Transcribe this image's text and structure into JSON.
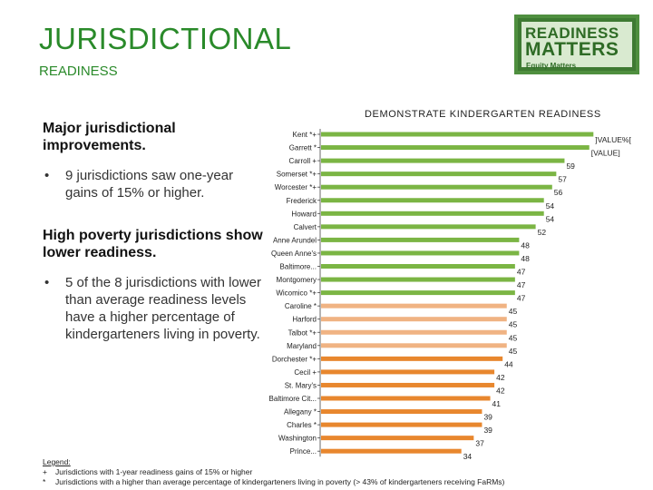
{
  "page": {
    "title": "JURISDICTIONAL",
    "subtitle": "READINESS"
  },
  "logo": {
    "line1": "READINESS",
    "line2": "MATTERS",
    "line3": "Equity Matters"
  },
  "left_panel": {
    "heading1": "Major jurisdictional improvements.",
    "bullet1": "9 jurisdictions saw one-year gains of 15% or higher.",
    "heading2": "High poverty jurisdictions show lower readiness.",
    "bullet2": "5 of the 8 jurisdictions with lower than average readiness levels have a higher percentage of kindergarteners living in poverty.",
    "bullet_symbol": "•"
  },
  "legend": {
    "heading": "Legend:",
    "items": [
      {
        "symbol": "+",
        "text": "Jurisdictions with 1-year readiness gains of 15% or higher"
      },
      {
        "symbol": "*",
        "text": "Jurisdictions with a higher than average percentage of kindergarteners living in poverty (> 43% of kindergarteners receiving FaRMs)"
      }
    ]
  },
  "colors": {
    "green": "#7bb544",
    "peach": "#f0b383",
    "orange": "#e8872e",
    "title_green": "#2a8a2a"
  },
  "chart_data": {
    "type": "bar",
    "orientation": "horizontal",
    "title": "DEMONSTRATE KINDERGARTEN READINESS",
    "xlim": [
      0,
      70
    ],
    "categories": [
      "Kent *+",
      "Garrett *",
      "Carroll +",
      "Somerset *+",
      "Worcester *+",
      "Frederick",
      "Howard",
      "Calvert",
      "Anne Arundel",
      "Queen Anne's",
      "Baltimore...",
      "Montgomery",
      "Wicomico *+",
      "Caroline *",
      "Harford",
      "Talbot *+",
      "Maryland",
      "Dorchester *+",
      "Cecil +",
      "St. Mary's",
      "Baltimore Cit...",
      "Allegany *",
      "Charles *",
      "Washington",
      "Prince..."
    ],
    "values": [
      66,
      65,
      59,
      57,
      56,
      54,
      54,
      52,
      48,
      48,
      47,
      47,
      47,
      45,
      45,
      45,
      45,
      44,
      42,
      42,
      41,
      39,
      39,
      37,
      34
    ],
    "data_labels": [
      "]VALUE%[",
      "[VALUE]",
      "59",
      "57",
      "56",
      "54",
      "54",
      "52",
      "48",
      "48",
      "47",
      "47",
      "47",
      "45",
      "45",
      "45",
      "45",
      "44",
      "42",
      "42",
      "41",
      "39",
      "39",
      "37",
      "34"
    ],
    "color_groups": [
      "green",
      "green",
      "green",
      "green",
      "green",
      "green",
      "green",
      "green",
      "green",
      "green",
      "green",
      "green",
      "green",
      "peach",
      "peach",
      "peach",
      "peach",
      "orange",
      "orange",
      "orange",
      "orange",
      "orange",
      "orange",
      "orange",
      "orange"
    ]
  }
}
